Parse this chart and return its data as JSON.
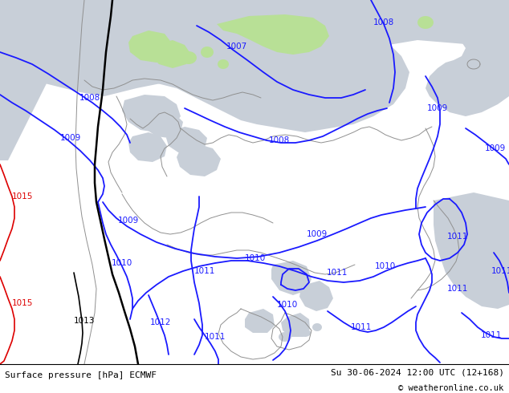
{
  "title_left": "Surface pressure [hPa] ECMWF",
  "title_right": "Su 30-06-2024 12:00 UTC (12+168)",
  "copyright": "© weatheronline.co.uk",
  "land_color": "#b8e096",
  "sea_color": "#c8cfd8",
  "border_color": "#909090",
  "isobar_blue": "#1a1aff",
  "isobar_red": "#dd0000",
  "isobar_black": "#000000",
  "bottom_bg": "#ffffff",
  "text_color": "#000000",
  "font_size_labels": 7.5,
  "font_size_bottom": 8.0,
  "figw": 6.34,
  "figh": 4.9,
  "dpi": 100
}
